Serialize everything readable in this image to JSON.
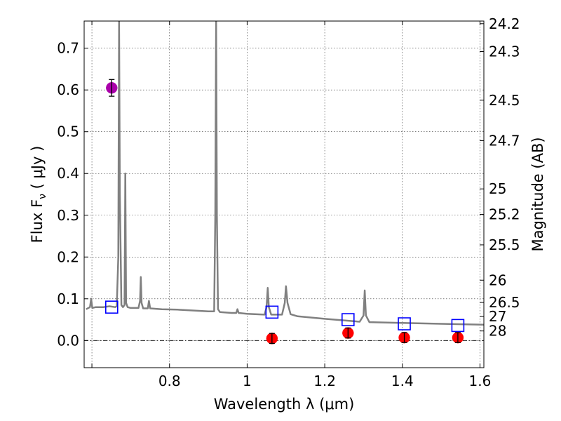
{
  "chart_data": {
    "type": "scatter",
    "title": "",
    "xlabel": "Wavelength  λ (μm)",
    "ylabel": "Flux  F",
    "ylabel_sub": "ν",
    "ylabel_units": "  ( μJy )",
    "y2label": "Magnitude (AB)",
    "xlim": [
      0.58,
      1.61
    ],
    "ylim": [
      -0.065,
      0.765
    ],
    "grid": true,
    "x_ticks": [
      {
        "value": 0.6,
        "label": ""
      },
      {
        "value": 0.8,
        "label": "0.8"
      },
      {
        "value": 1.0,
        "label": "1"
      },
      {
        "value": 1.2,
        "label": "1.2"
      },
      {
        "value": 1.4,
        "label": "1.4"
      },
      {
        "value": 1.6,
        "label": "1.6"
      }
    ],
    "y_ticks": [
      {
        "value": 0.0,
        "label": "0.0"
      },
      {
        "value": 0.1,
        "label": "0.1"
      },
      {
        "value": 0.2,
        "label": "0.2"
      },
      {
        "value": 0.3,
        "label": "0.3"
      },
      {
        "value": 0.4,
        "label": "0.4"
      },
      {
        "value": 0.5,
        "label": "0.5"
      },
      {
        "value": 0.6,
        "label": "0.6"
      },
      {
        "value": 0.7,
        "label": "0.7"
      }
    ],
    "mag_ticks": [
      {
        "value": 24.2,
        "label": "24.2"
      },
      {
        "value": 24.3,
        "label": "24.3"
      },
      {
        "value": 24.5,
        "label": "24.5"
      },
      {
        "value": 24.7,
        "label": "24.7"
      },
      {
        "value": 25,
        "label": "25"
      },
      {
        "value": 25.2,
        "label": "25.2"
      },
      {
        "value": 25.5,
        "label": "25.5"
      },
      {
        "value": 26,
        "label": "26"
      },
      {
        "value": 26.5,
        "label": "26.5"
      },
      {
        "value": 27,
        "label": "27"
      },
      {
        "value": 28,
        "label": "28"
      }
    ],
    "colors": {
      "spectrum": "#808080",
      "model_box": "#0000ff",
      "detection": "#ff0000",
      "special": "#aa00aa",
      "zero_line": "#000000"
    },
    "series": [
      {
        "name": "model spectrum",
        "kind": "line",
        "x": [
          0.585,
          0.595,
          0.598,
          0.601,
          0.61,
          0.63,
          0.645,
          0.66,
          0.664,
          0.668,
          0.67,
          0.672,
          0.676,
          0.68,
          0.684,
          0.686,
          0.688,
          0.692,
          0.7,
          0.72,
          0.724,
          0.726,
          0.728,
          0.732,
          0.744,
          0.747,
          0.75,
          0.78,
          0.82,
          0.86,
          0.9,
          0.915,
          0.918,
          0.92,
          0.922,
          0.925,
          0.93,
          0.96,
          0.972,
          0.975,
          0.978,
          1.0,
          1.045,
          1.05,
          1.053,
          1.056,
          1.062,
          1.09,
          1.097,
          1.1,
          1.104,
          1.112,
          1.13,
          1.2,
          1.29,
          1.3,
          1.303,
          1.306,
          1.315,
          1.4,
          1.5,
          1.61
        ],
        "y": [
          0.075,
          0.08,
          0.1,
          0.078,
          0.08,
          0.08,
          0.082,
          0.08,
          0.082,
          0.2,
          0.765,
          0.35,
          0.085,
          0.08,
          0.085,
          0.4,
          0.09,
          0.08,
          0.078,
          0.078,
          0.095,
          0.152,
          0.09,
          0.077,
          0.077,
          0.095,
          0.077,
          0.075,
          0.074,
          0.072,
          0.07,
          0.07,
          0.3,
          0.765,
          0.3,
          0.075,
          0.068,
          0.066,
          0.066,
          0.075,
          0.066,
          0.064,
          0.062,
          0.08,
          0.126,
          0.08,
          0.062,
          0.062,
          0.09,
          0.13,
          0.09,
          0.063,
          0.058,
          0.052,
          0.045,
          0.06,
          0.12,
          0.06,
          0.044,
          0.042,
          0.04,
          0.038
        ]
      },
      {
        "name": "model photometry",
        "kind": "square",
        "x": [
          0.651,
          1.064,
          1.26,
          1.405,
          1.543
        ],
        "y": [
          0.08,
          0.068,
          0.05,
          0.04,
          0.036
        ]
      },
      {
        "name": "observed photometry",
        "kind": "circle",
        "x": [
          1.064,
          1.26,
          1.405,
          1.543
        ],
        "y": [
          0.005,
          0.018,
          0.007,
          0.007
        ],
        "yerr": [
          0.012,
          0.012,
          0.012,
          0.012
        ]
      },
      {
        "name": "observed photometry (purple)",
        "kind": "circle",
        "x": [
          0.651
        ],
        "y": [
          0.605
        ],
        "yerr": [
          0.02
        ]
      }
    ]
  }
}
